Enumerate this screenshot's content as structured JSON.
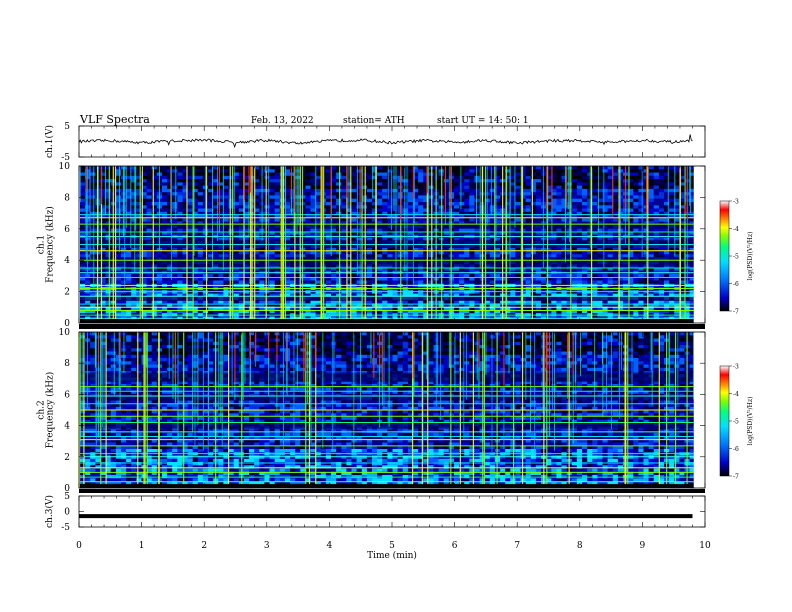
{
  "header": {
    "title": "VLF  Spectra",
    "date": "Feb. 13, 2022",
    "station": "station= ATH",
    "start": "start  UT  =   14: 50: 1"
  },
  "chart_data": [
    {
      "type": "line",
      "id": "ch1-waveform",
      "ylabel": "ch.1(V)",
      "ylim": [
        -5,
        5
      ],
      "yticks": [
        "5",
        "-5"
      ],
      "xlim": [
        0,
        10
      ],
      "series": [
        {
          "x": [
            0,
            0.5,
            1,
            1.5,
            2,
            2.5,
            3,
            3.5,
            4,
            4.5,
            5,
            5.5,
            6,
            6.5,
            7,
            7.5,
            8,
            8.5,
            9,
            9.5,
            9.8
          ],
          "values": [
            0,
            0.3,
            -0.4,
            0.2,
            0.5,
            -0.3,
            0.4,
            -0.6,
            0.2,
            0.5,
            -0.4,
            0.3,
            -0.2,
            0.4,
            -0.5,
            0.2,
            0.3,
            -0.3,
            0.4,
            -0.2,
            0.1
          ]
        }
      ]
    },
    {
      "type": "heatmap",
      "id": "ch1-spectrogram",
      "ylabel": "ch.1\nFrequency (kHz)",
      "ylim": [
        0,
        10
      ],
      "yticks": [
        "0",
        "2",
        "4",
        "6",
        "8",
        "10"
      ],
      "xlim": [
        0,
        10
      ],
      "colorbar": {
        "label": "log(PSD)(V²/Hz)",
        "range": [
          -7,
          -3
        ],
        "ticks": [
          "-3",
          "-4",
          "-5",
          "-6",
          "-7"
        ],
        "colors": [
          "#000000",
          "#0000c8",
          "#0080ff",
          "#00e0ff",
          "#00ff80",
          "#80ff00",
          "#ffff00",
          "#ff8000",
          "#ff0000",
          "#ffffff"
        ]
      },
      "bands_khz": [
        0.3,
        0.5,
        0.8,
        1.0,
        1.2,
        1.7,
        2.0,
        2.2,
        2.4,
        2.9,
        3.2,
        3.5,
        4.0,
        4.6,
        5.0,
        5.5,
        5.8,
        6.3,
        6.7,
        6.9
      ],
      "quiet_bands_khz": [
        [
          4.8,
          5.3
        ],
        [
          3.6,
          4.2
        ],
        [
          1.4,
          1.7
        ],
        [
          6.0,
          6.4
        ]
      ]
    },
    {
      "type": "heatmap",
      "id": "ch2-spectrogram",
      "ylabel": "ch.2\nFrequency (kHz)",
      "ylim": [
        0,
        10
      ],
      "yticks": [
        "0",
        "2",
        "4",
        "6",
        "8",
        "10"
      ],
      "xlim": [
        0,
        10
      ],
      "colorbar": {
        "label": "log(PSD)(V²/Hz)",
        "range": [
          -7,
          -3
        ],
        "ticks": [
          "-3",
          "-4",
          "-5",
          "-6",
          "-7"
        ],
        "colors": [
          "#000000",
          "#0000c8",
          "#0080ff",
          "#00e0ff",
          "#00ff80",
          "#80ff00",
          "#ffff00",
          "#ff8000",
          "#ff0000",
          "#ffffff"
        ]
      },
      "bands_khz": [
        0.4,
        0.7,
        1.0,
        1.3,
        1.6,
        2.0,
        2.2,
        2.7,
        3.1,
        3.3,
        3.6,
        4.2,
        4.6,
        5.0,
        5.4,
        5.9,
        6.2,
        6.5
      ],
      "quiet_bands_khz": [
        [
          5.6,
          6.0
        ],
        [
          3.8,
          4.2
        ],
        [
          6.8,
          7.4
        ]
      ]
    },
    {
      "type": "line",
      "id": "ch3-waveform",
      "ylabel": "ch.3(V)",
      "ylim": [
        -5,
        5
      ],
      "yticks": [
        "5",
        "0",
        "-5"
      ],
      "xlim": [
        0,
        10
      ],
      "xlabel": "Time  (min)",
      "xticks": [
        "0",
        "1",
        "2",
        "3",
        "4",
        "5",
        "6",
        "7",
        "8",
        "9",
        "10"
      ],
      "series": [
        {
          "x": [
            0,
            9.8
          ],
          "values": [
            -1.5,
            -1.5
          ]
        }
      ]
    }
  ]
}
